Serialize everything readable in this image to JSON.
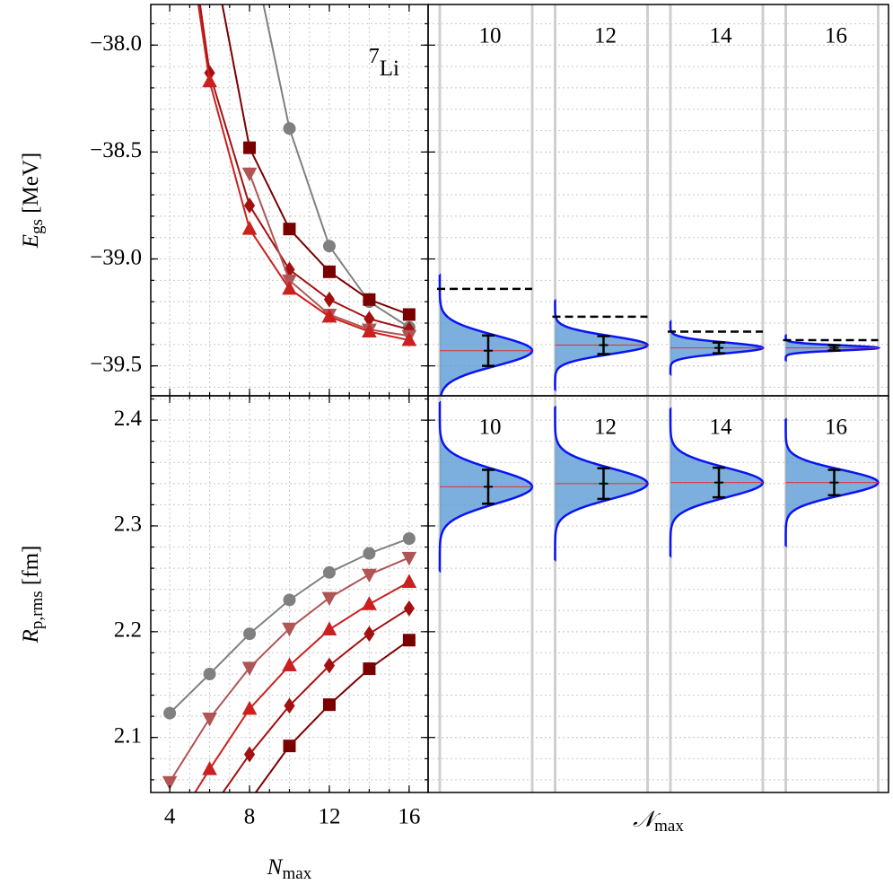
{
  "chart_data": [
    {
      "type": "line",
      "xlim": [
        3.05,
        16.95
      ],
      "ylim": [
        -39.64,
        -37.81
      ],
      "x": [
        4,
        6,
        8,
        10,
        12,
        14,
        16
      ],
      "xticks": [
        4,
        8,
        12,
        16
      ],
      "xminorticks": [
        4,
        5,
        6,
        7,
        8,
        9,
        10,
        11,
        12,
        13,
        14,
        15,
        16
      ],
      "yticks": [
        {
          "value": -38.0,
          "label": "−38.0"
        },
        {
          "value": -38.5,
          "label": "−38.5"
        },
        {
          "value": -39.0,
          "label": "−39.0"
        },
        {
          "value": -39.5,
          "label": "−39.5"
        }
      ],
      "yminorticks": [
        -39.6,
        -39.5,
        -39.4,
        -39.3,
        -39.2,
        -39.1,
        -39.0,
        -38.9,
        -38.8,
        -38.7,
        -38.6,
        -38.5,
        -38.4,
        -38.3,
        -38.2,
        -38.1,
        -38.0,
        -37.9
      ],
      "grid": true,
      "ylabel": [
        "E",
        "gs",
        " [MeV]"
      ],
      "annotation": [
        "7",
        "Li"
      ],
      "series": [
        {
          "color": "#808080",
          "marker": "circle",
          "values": [
            null,
            null,
            -37.5,
            -38.39,
            -38.94,
            -39.2,
            -39.32
          ]
        },
        {
          "color": "#7a0000",
          "marker": "square",
          "values": [
            null,
            -37.5,
            -38.48,
            -38.86,
            -39.06,
            -39.19,
            -39.26
          ]
        },
        {
          "color": "#a31010",
          "marker": "diamond",
          "values": [
            -36.8,
            -38.13,
            -38.75,
            -39.05,
            -39.19,
            -39.28,
            -39.33
          ]
        },
        {
          "color": "#b05555",
          "marker": "triangle-down",
          "values": [
            null,
            null,
            -38.6,
            -39.1,
            -39.26,
            -39.33,
            -39.36
          ]
        },
        {
          "color": "#cc1f1f",
          "marker": "triangle-up",
          "values": [
            -36.9,
            -38.17,
            -38.86,
            -39.14,
            -39.27,
            -39.34,
            -39.38
          ]
        }
      ]
    },
    {
      "type": "line",
      "xlim": [
        3.05,
        16.95
      ],
      "ylim": [
        2.048,
        2.423
      ],
      "x": [
        4,
        6,
        8,
        10,
        12,
        14,
        16
      ],
      "xticks": [
        4,
        8,
        12,
        16
      ],
      "xminorticks": [
        4,
        5,
        6,
        7,
        8,
        9,
        10,
        11,
        12,
        13,
        14,
        15,
        16
      ],
      "yticks": [
        2.1,
        2.2,
        2.3,
        2.4
      ],
      "yminorticks": [
        2.06,
        2.08,
        2.1,
        2.12,
        2.14,
        2.16,
        2.18,
        2.2,
        2.22,
        2.24,
        2.26,
        2.28,
        2.3,
        2.32,
        2.34,
        2.36,
        2.38,
        2.4,
        2.42
      ],
      "grid": true,
      "ylabel": [
        "R",
        "p,rms",
        " [fm]"
      ],
      "xlabel": [
        "N",
        "max"
      ],
      "series": [
        {
          "color": "#808080",
          "marker": "circle",
          "values": [
            2.123,
            2.16,
            2.198,
            2.23,
            2.256,
            2.274,
            2.288
          ]
        },
        {
          "color": "#b05555",
          "marker": "triangle-down",
          "values": [
            2.058,
            2.118,
            2.166,
            2.203,
            2.232,
            2.254,
            2.27
          ]
        },
        {
          "color": "#cc1f1f",
          "marker": "triangle-up",
          "values": [
            2.01,
            2.07,
            2.127,
            2.168,
            2.202,
            2.226,
            2.247
          ]
        },
        {
          "color": "#a31010",
          "marker": "diamond",
          "values": [
            null,
            2.03,
            2.084,
            2.13,
            2.168,
            2.198,
            2.222
          ]
        },
        {
          "color": "#7a0000",
          "marker": "square",
          "values": [
            null,
            null,
            2.04,
            2.092,
            2.131,
            2.165,
            2.192
          ]
        }
      ]
    },
    {
      "type": "distribution",
      "ylim": [
        -39.64,
        -37.81
      ],
      "categories": [
        "10",
        "12",
        "14",
        "16"
      ],
      "values": [
        -39.429,
        -39.403,
        -39.416,
        -39.416
      ],
      "errors": [
        0.071,
        0.042,
        0.025,
        0.012
      ],
      "reference": [
        -39.14,
        -39.27,
        -39.34,
        -39.38
      ],
      "yticks": [
        -38.0,
        -38.5,
        -39.0,
        -39.5
      ],
      "yminorticks": [
        -39.6,
        -39.5,
        -39.4,
        -39.3,
        -39.2,
        -39.1,
        -39.0,
        -38.9,
        -38.8,
        -38.7,
        -38.6,
        -38.5,
        -38.4,
        -38.3,
        -38.2,
        -38.1,
        -38.0,
        -37.9
      ],
      "grid": true,
      "color": "#0a14f0",
      "fill": "#5b9bd5",
      "mean_color": "#e03030"
    },
    {
      "type": "distribution",
      "ylim": [
        2.048,
        2.423
      ],
      "categories": [
        "10",
        "12",
        "14",
        "16"
      ],
      "values": [
        2.337,
        2.34,
        2.341,
        2.341
      ],
      "errors": [
        0.016,
        0.0145,
        0.014,
        0.012
      ],
      "yticks": [
        2.1,
        2.2,
        2.3,
        2.4
      ],
      "yminorticks": [
        2.06,
        2.08,
        2.1,
        2.12,
        2.14,
        2.16,
        2.18,
        2.2,
        2.22,
        2.24,
        2.26,
        2.28,
        2.3,
        2.32,
        2.34,
        2.36,
        2.38,
        2.4,
        2.42
      ],
      "grid": true,
      "color": "#0a14f0",
      "fill": "#5b9bd5",
      "mean_color": "#e03030",
      "xlabel": [
        "𝒩",
        "max"
      ]
    }
  ]
}
